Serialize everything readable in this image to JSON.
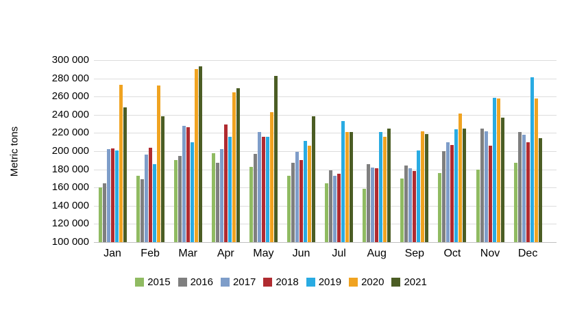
{
  "chart_data": {
    "type": "bar",
    "title": "",
    "xlabel": "",
    "ylabel": "Metric tons",
    "ylim": [
      100000,
      300000
    ],
    "y_tick_step": 20000,
    "y_ticks": [
      "300 000",
      "280 000",
      "260 000",
      "240 000",
      "220 000",
      "200 000",
      "180 000",
      "160 000",
      "140 000",
      "120 000",
      "100 000"
    ],
    "categories": [
      "Jan",
      "Feb",
      "Mar",
      "Apr",
      "May",
      "Jun",
      "Jul",
      "Aug",
      "Sep",
      "Oct",
      "Nov",
      "Dec"
    ],
    "series": [
      {
        "name": "2015",
        "color": "#90BB62",
        "values": [
          160000,
          173000,
          190000,
          198000,
          183000,
          173000,
          165000,
          159000,
          170000,
          176000,
          180000,
          187000
        ]
      },
      {
        "name": "2016",
        "color": "#7F7F7F",
        "values": [
          165000,
          169000,
          195000,
          187000,
          197000,
          187000,
          179000,
          186000,
          184000,
          200000,
          225000,
          221000
        ]
      },
      {
        "name": "2017",
        "color": "#7E9DC9",
        "values": [
          202000,
          196000,
          228000,
          202000,
          221000,
          199000,
          173000,
          182000,
          181000,
          210000,
          222000,
          218000
        ]
      },
      {
        "name": "2018",
        "color": "#B02B30",
        "values": [
          203000,
          204000,
          226000,
          229000,
          216000,
          190000,
          175000,
          181000,
          178000,
          207000,
          206000,
          210000
        ]
      },
      {
        "name": "2019",
        "color": "#29ABE2",
        "values": [
          201000,
          186000,
          210000,
          216000,
          216000,
          211000,
          233000,
          221000,
          201000,
          224000,
          259000,
          281000
        ]
      },
      {
        "name": "2020",
        "color": "#F0A321",
        "values": [
          273000,
          272000,
          290000,
          265000,
          243000,
          206000,
          221000,
          216000,
          222000,
          241000,
          258000,
          258000
        ]
      },
      {
        "name": "2021",
        "color": "#4B5D24",
        "values": [
          248000,
          238000,
          293000,
          269000,
          283000,
          238000,
          221000,
          225000,
          219000,
          225000,
          237000,
          214000
        ]
      }
    ],
    "grid": true,
    "legend_position": "bottom"
  }
}
